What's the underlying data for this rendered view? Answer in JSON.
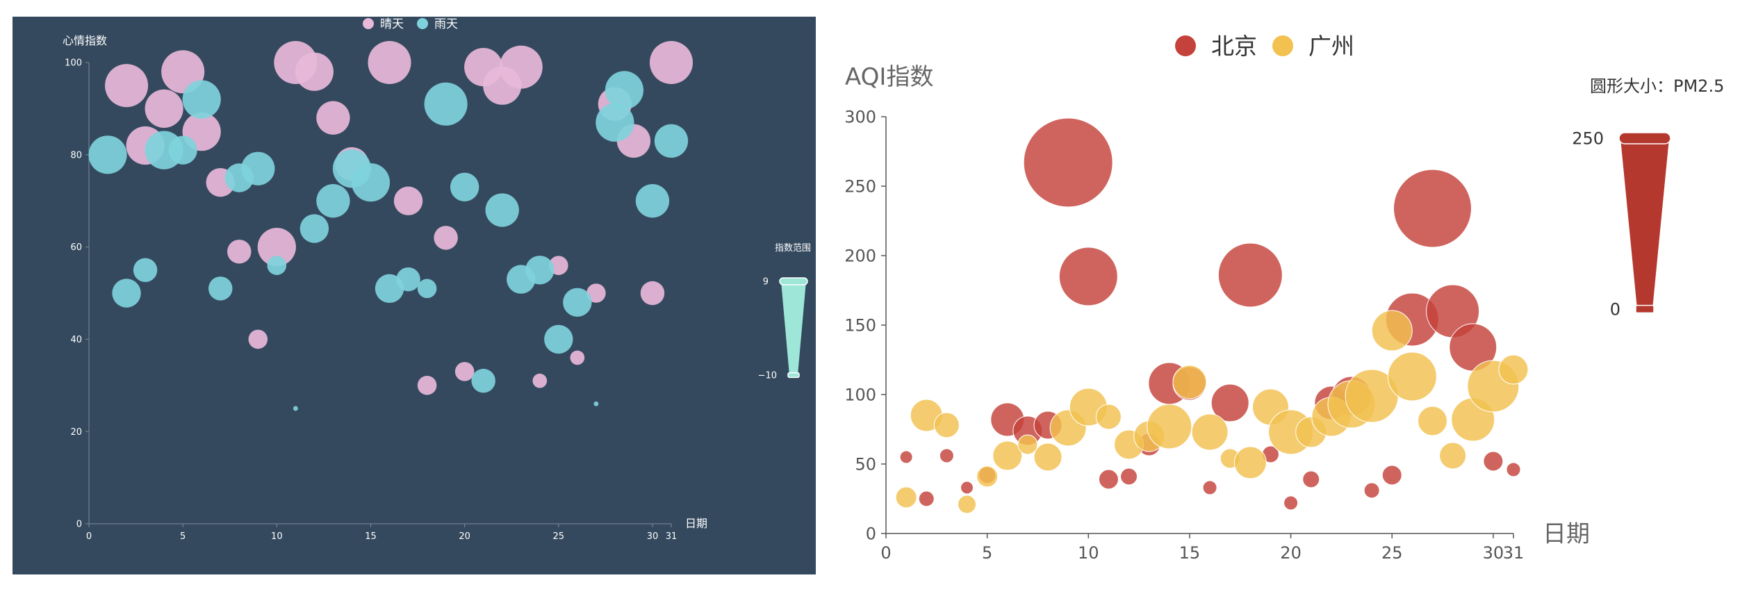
{
  "chart_data": [
    {
      "type": "scatter",
      "title": "",
      "background": "#34495e",
      "xlabel": "日期",
      "ylabel": "心情指数",
      "xlim": [
        0,
        31
      ],
      "ylim": [
        0,
        100
      ],
      "xticks": [
        0,
        5,
        10,
        15,
        20,
        25,
        30,
        31
      ],
      "yticks": [
        0,
        20,
        40,
        60,
        80,
        100
      ],
      "grid": false,
      "legend_position": "top-center",
      "visual_map": {
        "label": "指数范围",
        "max_label": "9",
        "min_label": "−10",
        "color": "#9ee6d8"
      },
      "series": [
        {
          "name": "晴天",
          "color": "#e8b9d9",
          "points": [
            [
              2,
              95,
              9
            ],
            [
              3,
              82,
              8
            ],
            [
              4,
              90,
              8
            ],
            [
              5,
              98,
              9
            ],
            [
              6,
              85,
              8
            ],
            [
              7,
              74,
              6
            ],
            [
              8,
              59,
              5
            ],
            [
              9,
              40,
              4
            ],
            [
              10,
              60,
              8
            ],
            [
              11,
              100,
              9
            ],
            [
              12,
              98,
              8
            ],
            [
              13,
              88,
              7
            ],
            [
              14,
              78,
              7
            ],
            [
              16,
              100,
              9
            ],
            [
              17,
              70,
              6
            ],
            [
              18,
              30,
              4
            ],
            [
              19,
              62,
              5
            ],
            [
              20,
              33,
              4
            ],
            [
              21,
              99,
              8
            ],
            [
              22,
              95,
              8
            ],
            [
              23,
              99,
              9
            ],
            [
              24,
              31,
              3
            ],
            [
              25,
              56,
              4
            ],
            [
              26,
              36,
              3
            ],
            [
              27,
              50,
              4
            ],
            [
              28,
              91,
              7
            ],
            [
              29,
              83,
              7
            ],
            [
              30,
              50,
              5
            ],
            [
              31,
              100,
              9
            ]
          ]
        },
        {
          "name": "雨天",
          "color": "#7fd2dc",
          "points": [
            [
              1,
              80,
              8
            ],
            [
              2,
              50,
              6
            ],
            [
              3,
              55,
              5
            ],
            [
              4,
              81,
              8
            ],
            [
              5,
              81,
              6
            ],
            [
              6,
              92,
              8
            ],
            [
              7,
              51,
              5
            ],
            [
              8,
              75,
              6
            ],
            [
              9,
              77,
              7
            ],
            [
              10,
              56,
              4
            ],
            [
              11,
              25,
              1
            ],
            [
              12,
              64,
              6
            ],
            [
              13,
              70,
              7
            ],
            [
              14,
              77,
              8
            ],
            [
              15,
              74,
              8
            ],
            [
              16,
              51,
              6
            ],
            [
              17,
              53,
              5
            ],
            [
              18,
              51,
              4
            ],
            [
              19,
              91,
              9
            ],
            [
              20,
              73,
              6
            ],
            [
              21,
              31,
              5
            ],
            [
              22,
              68,
              7
            ],
            [
              23,
              53,
              6
            ],
            [
              24,
              55,
              6
            ],
            [
              25,
              40,
              6
            ],
            [
              26,
              48,
              6
            ],
            [
              27,
              26,
              1
            ],
            [
              28,
              87,
              8
            ],
            [
              28.5,
              94,
              8
            ],
            [
              30,
              70,
              7
            ],
            [
              31,
              83,
              7
            ]
          ]
        }
      ]
    },
    {
      "type": "scatter",
      "title": "",
      "background": "#ffffff",
      "xlabel": "日期",
      "ylabel": "AQI指数",
      "xlim": [
        0,
        31
      ],
      "ylim": [
        0,
        300
      ],
      "xticks": [
        0,
        5,
        10,
        15,
        20,
        25,
        30,
        31
      ],
      "yticks": [
        0,
        50,
        100,
        150,
        200,
        250,
        300
      ],
      "grid": false,
      "legend_position": "top-center",
      "visual_map": {
        "label": "圆形大小：PM2.5",
        "max_label": "250",
        "min_label": "0",
        "color": "#b5382f"
      },
      "series": [
        {
          "name": "北京",
          "color": "#c4423b",
          "points": [
            [
              1,
              55,
              9
            ],
            [
              2,
              25,
              11
            ],
            [
              3,
              56,
              10
            ],
            [
              4,
              33,
              9
            ],
            [
              5,
              42,
              12
            ],
            [
              6,
              82,
              24
            ],
            [
              7,
              74,
              21
            ],
            [
              8,
              78,
              20
            ],
            [
              9,
              267,
              64
            ],
            [
              10,
              185,
              42
            ],
            [
              11,
              39,
              14
            ],
            [
              12,
              41,
              12
            ],
            [
              13,
              64,
              16
            ],
            [
              14,
              108,
              30
            ],
            [
              15,
              108,
              24
            ],
            [
              16,
              33,
              10
            ],
            [
              17,
              94,
              27
            ],
            [
              18,
              186,
              46
            ],
            [
              19,
              57,
              12
            ],
            [
              20,
              22,
              10
            ],
            [
              21,
              39,
              12
            ],
            [
              22,
              94,
              24
            ],
            [
              23,
              99,
              28
            ],
            [
              24,
              31,
              11
            ],
            [
              25,
              42,
              14
            ],
            [
              26,
              154,
              38
            ],
            [
              27,
              234,
              56
            ],
            [
              28,
              160,
              38
            ],
            [
              29,
              134,
              34
            ],
            [
              30,
              52,
              14
            ],
            [
              31,
              46,
              10
            ]
          ]
        },
        {
          "name": "广州",
          "color": "#f2c14f",
          "points": [
            [
              1,
              26,
              15
            ],
            [
              2,
              85,
              23
            ],
            [
              3,
              78,
              18
            ],
            [
              4,
              21,
              13
            ],
            [
              5,
              41,
              15
            ],
            [
              6,
              56,
              21
            ],
            [
              7,
              64,
              14
            ],
            [
              8,
              55,
              20
            ],
            [
              9,
              76,
              26
            ],
            [
              10,
              91,
              27
            ],
            [
              11,
              84,
              18
            ],
            [
              12,
              64,
              21
            ],
            [
              13,
              70,
              22
            ],
            [
              14,
              77,
              32
            ],
            [
              15,
              109,
              24
            ],
            [
              16,
              73,
              26
            ],
            [
              17,
              54,
              14
            ],
            [
              18,
              51,
              23
            ],
            [
              19,
              91,
              26
            ],
            [
              20,
              73,
              32
            ],
            [
              21,
              73,
              22
            ],
            [
              22,
              84,
              28
            ],
            [
              23,
              93,
              34
            ],
            [
              24,
              99,
              38
            ],
            [
              25,
              146,
              29
            ],
            [
              26,
              113,
              35
            ],
            [
              27,
              81,
              21
            ],
            [
              28,
              56,
              19
            ],
            [
              29,
              82,
              31
            ],
            [
              30,
              106,
              37
            ],
            [
              31,
              118,
              21
            ]
          ]
        }
      ]
    }
  ]
}
